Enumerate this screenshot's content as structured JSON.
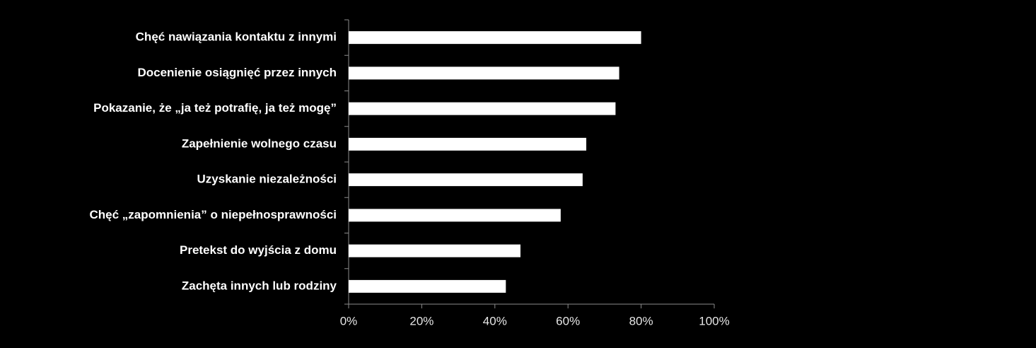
{
  "chart_data": {
    "type": "barh",
    "categories": [
      "Chęć nawiązania kontaktu z innymi",
      "Docenienie  osiągnięć przez innych",
      "Pokazanie, że „ja też potrafię, ja też mogę”",
      "Zapełnienie wolnego czasu",
      "Uzyskanie niezależności",
      "Chęć „zapomnienia” o niepełnosprawności",
      "Pretekst do wyjścia z domu",
      "Zachęta innych lub rodziny"
    ],
    "values": [
      80,
      74,
      73,
      65,
      64,
      58,
      47,
      43
    ],
    "color": "#ffffff",
    "xlim": [
      0,
      100
    ],
    "xticks": [
      {
        "value": 0,
        "label": "0%"
      },
      {
        "value": 20,
        "label": "20%"
      },
      {
        "value": 40,
        "label": "40%"
      },
      {
        "value": 60,
        "label": "60%"
      },
      {
        "value": 80,
        "label": "80%"
      },
      {
        "value": 100,
        "label": "100%"
      }
    ],
    "grid": false
  }
}
